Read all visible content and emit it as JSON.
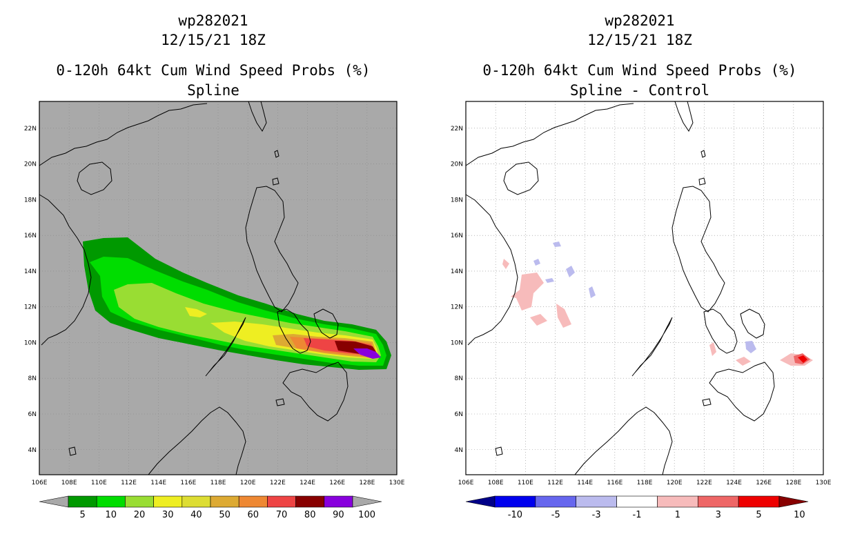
{
  "panels": [
    {
      "id": "spline",
      "title_lines": [
        "wp282021",
        "12/15/21 18Z",
        "0-120h 64kt Cum Wind Speed Probs (%)",
        "Spline"
      ],
      "background": "#a9a9a9",
      "colorbar": {
        "labels": [
          "5",
          "10",
          "20",
          "30",
          "40",
          "50",
          "60",
          "70",
          "80",
          "90",
          "100"
        ],
        "colors": [
          "#a9a9a9",
          "#009900",
          "#00dd00",
          "#99dd33",
          "#eeee22",
          "#dddd33",
          "#ddaa33",
          "#ee8833",
          "#ee4444",
          "#880000",
          "#8800dd",
          "#a9a9a9"
        ]
      }
    },
    {
      "id": "spline-control",
      "title_lines": [
        "wp282021",
        "12/15/21 18Z",
        "0-120h 64kt Cum Wind Speed Probs (%)",
        "Spline - Control"
      ],
      "background": "#ffffff",
      "colorbar": {
        "labels": [
          "-10",
          "-5",
          "-3",
          "-1",
          "1",
          "3",
          "5",
          "10"
        ],
        "colors": [
          "#000088",
          "#0000ee",
          "#6666ee",
          "#bbbbee",
          "#ffffff",
          "#f7bbbb",
          "#ee6666",
          "#ee0000",
          "#880000"
        ]
      }
    }
  ],
  "axes": {
    "x_ticks": [
      "106E",
      "108E",
      "110E",
      "112E",
      "114E",
      "116E",
      "118E",
      "120E",
      "122E",
      "124E",
      "126E",
      "128E",
      "130E"
    ],
    "y_ticks": [
      "4N",
      "6N",
      "8N",
      "10N",
      "12N",
      "14N",
      "16N",
      "18N",
      "20N",
      "22N"
    ],
    "lon_range": [
      106,
      130
    ],
    "lat_range": [
      2.6,
      23.5
    ]
  }
}
